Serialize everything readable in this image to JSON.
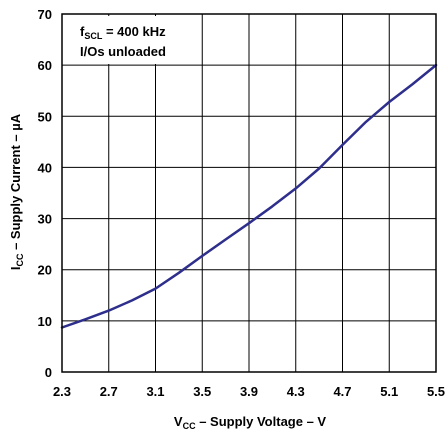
{
  "chart_data": {
    "type": "line",
    "title": "",
    "xlabel": {
      "main": "V",
      "sub": "CC",
      "rest": " – Supply Voltage – V"
    },
    "ylabel": {
      "main": "I",
      "sub": "CC",
      "rest": " – Supply Current – µA"
    },
    "xlim": [
      2.3,
      5.5
    ],
    "ylim": [
      0,
      70
    ],
    "xticks": [
      2.3,
      2.7,
      3.1,
      3.5,
      3.9,
      4.3,
      4.7,
      5.1,
      5.5
    ],
    "xtick_labels": [
      "2.3",
      "2.7",
      "3.1",
      "3.5",
      "3.9",
      "4.3",
      "4.7",
      "5.1",
      "5.5"
    ],
    "yticks": [
      0,
      10,
      20,
      30,
      40,
      50,
      60,
      70
    ],
    "ytick_labels": [
      "0",
      "10",
      "20",
      "30",
      "40",
      "50",
      "60",
      "70"
    ],
    "grid": true,
    "annotation": {
      "line1_main": "f",
      "line1_sub": "SCL",
      "line1_rest": " = 400 kHz",
      "line2": "I/Os unloaded"
    },
    "series": [
      {
        "color": "#2e2e8c",
        "x": [
          2.3,
          2.5,
          2.7,
          2.9,
          3.1,
          3.3,
          3.5,
          3.7,
          3.9,
          4.1,
          4.3,
          4.5,
          4.7,
          4.9,
          5.1,
          5.3,
          5.5
        ],
        "y": [
          8.7,
          10.3,
          12.0,
          14.0,
          16.3,
          19.4,
          22.7,
          25.9,
          29.1,
          32.4,
          35.9,
          39.8,
          44.4,
          48.9,
          52.8,
          56.3,
          60.0
        ]
      }
    ]
  }
}
